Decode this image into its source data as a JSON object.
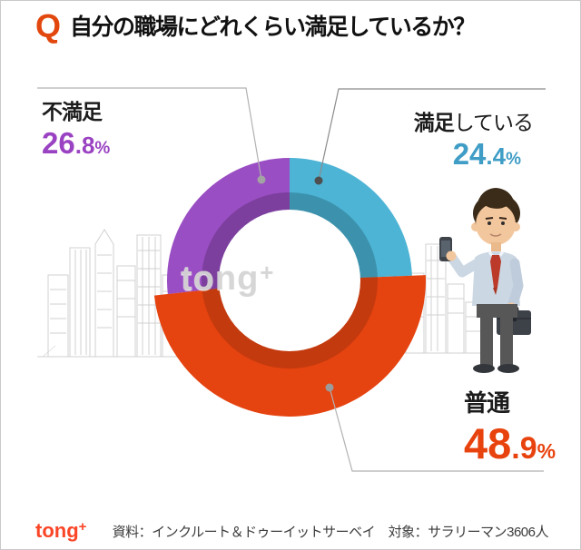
{
  "title": {
    "q_mark": "Q",
    "text": "自分の職場にどれくらい満足しているか？"
  },
  "watermark": {
    "text": "tong",
    "plus": "+"
  },
  "footer": {
    "logo_text": "tong",
    "logo_plus": "+",
    "source": "資料：インクルート＆ドゥーイットサーベイ　対象：サラリーマン3606人"
  },
  "colors": {
    "q_mark": "#e2470d",
    "logo": "#fa4526",
    "leader_line": "#a9a9a9"
  },
  "chart_data": {
    "type": "pie",
    "subtype": "donut",
    "title": "自分の職場にどれくらい満足しているか？",
    "unit": "%",
    "legend_position": "callouts",
    "start_angle_deg": 0,
    "clockwise": true,
    "segments": [
      {
        "label": "満足している",
        "label_bold": "満足",
        "label_rest": "している",
        "value": 24.4,
        "value_int": "24",
        "value_frac": ".4",
        "color": "#4db4d5",
        "inner_shade": "#3c92ad",
        "text_color": "#3f9dc6",
        "outer_radius": 135
      },
      {
        "label": "普通",
        "label_bold": "普通",
        "label_rest": "",
        "value": 48.9,
        "value_int": "48",
        "value_frac": ".9",
        "color": "#e54310",
        "inner_shade": "#c33a0e",
        "text_color": "#e8430e",
        "outer_radius": 150,
        "emphasized": true
      },
      {
        "label": "不満足",
        "label_bold": "不満足",
        "label_rest": "",
        "value": 26.8,
        "value_int": "26",
        "value_frac": ".8",
        "color": "#9a4ec3",
        "inner_shade": "#7c3f9e",
        "text_color": "#9a43c2",
        "outer_radius": 135
      }
    ]
  }
}
